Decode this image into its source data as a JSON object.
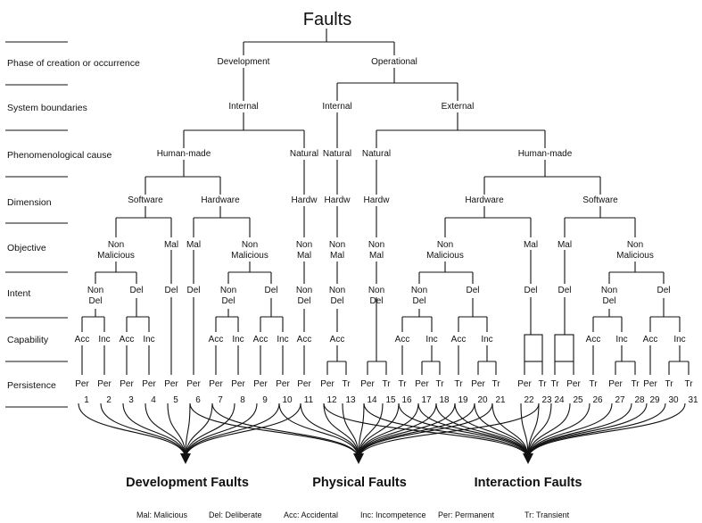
{
  "title": "Faults",
  "rows": [
    "Phase of creation or occurrence",
    "System boundaries",
    "Phenomenological cause",
    "Dimension",
    "Objective",
    "Intent",
    "Capability",
    "Persistence"
  ],
  "nodes": {
    "phase_dev": "Development",
    "phase_op": "Operational",
    "bound_int_dev": "Internal",
    "bound_int_op": "Internal",
    "bound_ext": "External",
    "cause_hm_dev": "Human-made",
    "cause_nat_dev": "Natural",
    "cause_nat_op_int": "Natural",
    "cause_nat_op_ext": "Natural",
    "cause_hm_op": "Human-made",
    "dim_sw_dev": "Software",
    "dim_hw_dev": "Hardware",
    "dim_hardw_dev": "Hardw",
    "dim_hardw_int": "Hardw",
    "dim_hardw_ext": "Hardw",
    "dim_hw_op": "Hardware",
    "dim_sw_op": "Software",
    "obj_nonmal_1": "Non\nMalicious",
    "obj_mal_2": "Mal",
    "obj_mal_3": "Mal",
    "obj_nonmal_4": "Non\nMalicious",
    "obj_nonmal_5": "Non\nMal",
    "obj_nonmal_6": "Non\nMal",
    "obj_nonmal_7": "Non\nMal",
    "obj_nonmal_8": "Non\nMalicious",
    "obj_mal_9": "Mal",
    "obj_mal_10": "Mal",
    "obj_nonmal_11": "Non\nMalicious",
    "int_nondel_1": "Non\nDel",
    "int_del_1": "Del",
    "int_del_2": "Del",
    "int_del_3": "Del",
    "int_nondel_4": "Non\nDel",
    "int_del_4": "Del",
    "int_nondel_5": "Non\nDel",
    "int_nondel_6": "Non\nDel",
    "int_nondel_7": "Non\nDel",
    "int_nondel_8": "Non\nDel",
    "int_del_8": "Del",
    "int_del_9": "Del",
    "int_del_10": "Del",
    "int_nondel_11": "Non\nDel",
    "int_del_11": "Del"
  },
  "capability_labels": [
    "Acc",
    "Inc",
    "Acc",
    "Inc",
    "Acc",
    "Inc",
    "Acc",
    "Inc",
    "Acc",
    "Acc",
    "Acc",
    "Inc",
    "Acc",
    "Inc",
    "Acc",
    "Inc",
    "Acc",
    "Inc"
  ],
  "persistence_labels": [
    "Per",
    "Per",
    "Per",
    "Per",
    "Per",
    "Per",
    "Per",
    "Per",
    "Per",
    "Per",
    "Per",
    "Per",
    "Tr",
    "Per",
    "Tr",
    "Tr",
    "Per",
    "Tr",
    "Tr",
    "Per",
    "Tr",
    "Per",
    "Tr",
    "Tr",
    "Per",
    "Tr",
    "Per",
    "Tr",
    "Per",
    "Tr",
    "Tr"
  ],
  "leaf_numbers": [
    "1",
    "2",
    "3",
    "4",
    "5",
    "6",
    "7",
    "8",
    "9",
    "10",
    "11",
    "12",
    "13",
    "14",
    "15",
    "16",
    "17",
    "18",
    "19",
    "20",
    "21",
    "22",
    "23",
    "24",
    "25",
    "26",
    "27",
    "28",
    "29",
    "30",
    "31"
  ],
  "classes": {
    "development": "Development Faults",
    "physical": "Physical Faults",
    "interaction": "Interaction Faults"
  },
  "legend": [
    "Mal: Malicious",
    "Del: Deliberate",
    "Acc: Accidental",
    "Inc: Incompetence",
    "Per: Permanent",
    "Tr: Transient"
  ]
}
